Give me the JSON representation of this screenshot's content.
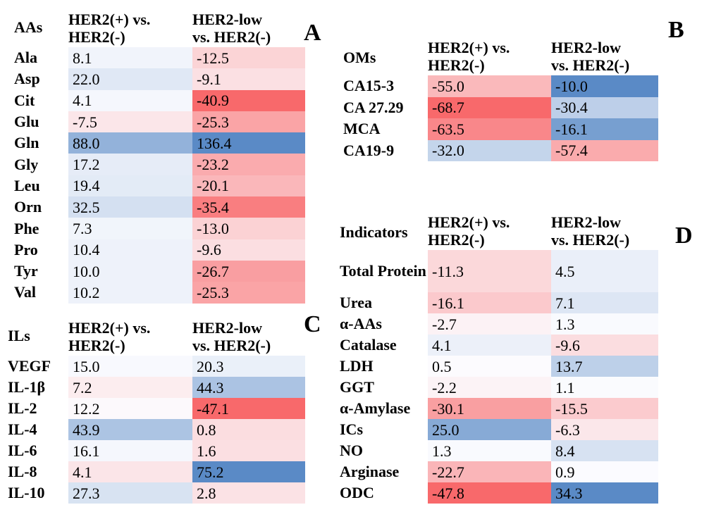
{
  "figure": {
    "background_color": "#ffffff",
    "text_color": "#000000",
    "color_scale": {
      "min_color": "#F8696B",
      "mid_color": "#FCFCFF",
      "max_color": "#5A8AC6",
      "midpoint_rule": "median of all values within each panel"
    }
  },
  "chart_data": [
    {
      "type": "heatmap",
      "panel_letter": "A",
      "row_header": "AAs",
      "col_headers": [
        [
          "HER2(+) vs.",
          "HER2(-)"
        ],
        [
          "HER2-low",
          "vs. HER2(-)"
        ]
      ],
      "rows": [
        "Ala",
        "Asp",
        "Cit",
        "Glu",
        "Gln",
        "Gly",
        "Leu",
        "Orn",
        "Phe",
        "Pro",
        "Tyr",
        "Val"
      ],
      "series": [
        {
          "name": "HER2(+) vs. HER2(-)",
          "values": [
            8.1,
            22.0,
            4.1,
            -7.5,
            88.0,
            17.2,
            19.4,
            32.5,
            7.3,
            10.4,
            10.0,
            10.2
          ]
        },
        {
          "name": "HER2-low vs. HER2(-)",
          "values": [
            -12.5,
            -9.1,
            -40.9,
            -25.3,
            136.4,
            -23.2,
            -20.1,
            -35.4,
            -13.0,
            -9.6,
            -26.7,
            -25.3
          ]
        }
      ]
    },
    {
      "type": "heatmap",
      "panel_letter": "B",
      "row_header": "OMs",
      "col_headers": [
        [
          "HER2(+) vs.",
          "HER2(-)"
        ],
        [
          "HER2-low",
          "vs. HER2(-)"
        ]
      ],
      "rows": [
        "CA15-3",
        "CA 27.29",
        "MCA",
        "CA19-9"
      ],
      "series": [
        {
          "name": "HER2(+) vs. HER2(-)",
          "values": [
            -55.0,
            -68.7,
            -63.5,
            -32.0
          ]
        },
        {
          "name": "HER2-low vs. HER2(-)",
          "values": [
            -10.0,
            -30.4,
            -16.1,
            -57.4
          ]
        }
      ]
    },
    {
      "type": "heatmap",
      "panel_letter": "C",
      "row_header": "ILs",
      "col_headers": [
        [
          "HER2(+) vs.",
          "HER2(-)"
        ],
        [
          "HER2-low",
          "vs. HER2(-)"
        ]
      ],
      "rows": [
        "VEGF",
        "IL-1β",
        "IL-2",
        "IL-4",
        "IL-6",
        "IL-8",
        "IL-10"
      ],
      "series": [
        {
          "name": "HER2(+) vs. HER2(-)",
          "values": [
            15.0,
            7.2,
            12.2,
            43.9,
            16.1,
            4.1,
            27.3
          ]
        },
        {
          "name": "HER2-low vs. HER2(-)",
          "values": [
            20.3,
            44.3,
            -47.1,
            0.8,
            1.6,
            75.2,
            2.8
          ]
        }
      ]
    },
    {
      "type": "heatmap",
      "panel_letter": "D",
      "row_header": "Indicators",
      "col_headers": [
        [
          "HER2(+) vs.",
          "HER2(-)"
        ],
        [
          "HER2-low",
          "vs. HER2(-)"
        ]
      ],
      "rows": [
        "Total Protein",
        "Urea",
        "α-AAs",
        "Catalase",
        "LDH",
        "GGT",
        "α-Amylase",
        "ICs",
        "NO",
        "Arginase",
        "ODC"
      ],
      "series": [
        {
          "name": "HER2(+) vs. HER2(-)",
          "values": [
            -11.3,
            -16.1,
            -2.7,
            4.1,
            0.5,
            -2.2,
            -30.1,
            25.0,
            1.3,
            -22.7,
            -47.8
          ]
        },
        {
          "name": "HER2-low vs. HER2(-)",
          "values": [
            4.5,
            7.1,
            1.3,
            -9.6,
            13.7,
            1.1,
            -15.5,
            -6.3,
            8.4,
            0.9,
            34.3
          ]
        }
      ]
    }
  ]
}
